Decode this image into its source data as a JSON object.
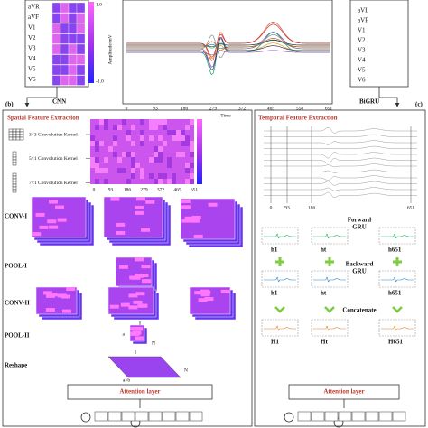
{
  "top": {
    "left_leads": [
      "aVR",
      "aVF",
      "V1",
      "V2",
      "V3",
      "V4",
      "V5",
      "V6"
    ],
    "colorbar_ticks": [
      "1.0",
      "-1.0"
    ],
    "chart": {
      "y_label": "Amplitude/mV",
      "x_label": "Time",
      "x_ticks": [
        "0",
        "93",
        "186",
        "279",
        "372",
        "465",
        "558",
        "651"
      ]
    },
    "right_leads": [
      "aVL",
      "aVF",
      "V1",
      "V2",
      "V3",
      "V4",
      "V5",
      "V6"
    ],
    "cnn": "CNN",
    "bigru": "BiGRU"
  },
  "left_panel": {
    "tag": "(b)",
    "title": "Spatial Feature Extraction",
    "kernels": [
      "3×3 Convolution Kernel",
      "5×1 Convolution Kernel",
      "7×1 Convolution Kernel"
    ],
    "heatmap_ticks": [
      "0",
      "93",
      "186",
      "279",
      "372",
      "465",
      "651"
    ],
    "stages": [
      "CONV-I",
      "POOL-I",
      "CONV-II",
      "POOL-II",
      "Reshape"
    ],
    "dims": [
      "a",
      "N",
      "a×b",
      "N"
    ],
    "attention": "Attention layer"
  },
  "right_panel": {
    "tag": "(c)",
    "title": "Temporal Feature Extraction",
    "ticks": [
      "0",
      "93",
      "186",
      "651"
    ],
    "forward": [
      "Forward",
      "GRU"
    ],
    "backward": [
      "Backward",
      "GRU"
    ],
    "concatenate": "Concatenate",
    "forward_states": [
      "h1",
      "ht",
      "h651"
    ],
    "backward_states": [
      "h1",
      "ht",
      "h651"
    ],
    "outputs": [
      "H1",
      "Ht",
      "H651"
    ],
    "attention": "Attention layer"
  }
}
